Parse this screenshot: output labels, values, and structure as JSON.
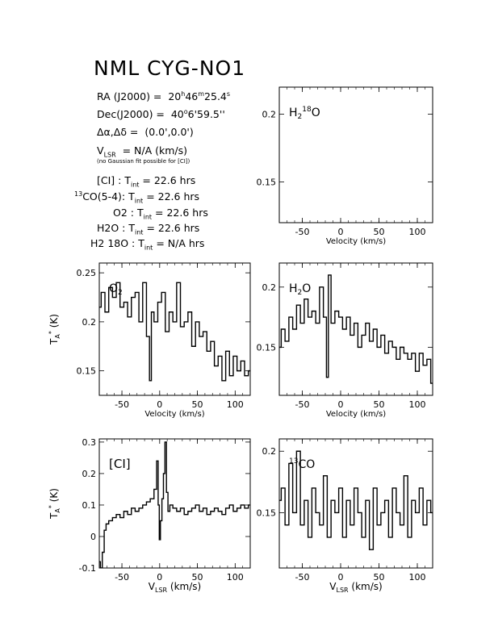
{
  "header": {
    "title": "NML CYG-NO1",
    "ra": {
      "label": "RA (J2000) =",
      "h": "20",
      "h_unit": "h",
      "m": "46",
      "m_unit": "m",
      "s": "25.4",
      "s_unit": "s"
    },
    "dec": {
      "label": "Dec(J2000) =",
      "d": "40",
      "d_unit": "o",
      "rest": "6'59.5''"
    },
    "offset": {
      "label": "Δα,Δδ =",
      "value": "(0.0',0.0')"
    },
    "vlsr": {
      "label_main": "V",
      "label_sub": "LSR",
      "value": "= N/A (km/s)"
    },
    "note": "(no Gaussian fit possible for [CI])",
    "integrations": [
      {
        "pre": "",
        "sup": "",
        "name": "[CI] :",
        "label": "T",
        "sub": "int",
        "value": "= 22.6 hrs"
      },
      {
        "pre": "",
        "sup": "13",
        "name": "CO(5-4):",
        "label": "T",
        "sub": "int",
        "value": "= 22.6 hrs"
      },
      {
        "pre": "O",
        "sup": "",
        "name": "2 :",
        "label": "T",
        "sub": "int",
        "value": "= 22.6 hrs"
      },
      {
        "pre": "H",
        "sup": "",
        "name": "2O :",
        "label": "T",
        "sub": "int",
        "value": "= 22.6 hrs"
      },
      {
        "pre": "H",
        "sup": "",
        "name": "2 18O :",
        "label": "T",
        "sub": "int",
        "value": "= N/A hrs"
      }
    ]
  },
  "chart_data": [
    {
      "type": "line",
      "name": "H2 18O panel",
      "label": "H218O",
      "xlim": [
        -80,
        120
      ],
      "ylim": [
        0.12,
        0.22
      ],
      "xticks": [
        -50,
        0,
        50,
        100
      ],
      "yticks": [
        0.15,
        0.2
      ],
      "xlabel": "Velocity (km/s)",
      "ylabel": "",
      "x": [],
      "y": []
    },
    {
      "type": "line",
      "name": "O2 panel",
      "label": "O2",
      "xlim": [
        -80,
        120
      ],
      "ylim": [
        0.125,
        0.26
      ],
      "xticks": [
        -50,
        0,
        50,
        100
      ],
      "yticks": [
        0.15,
        0.2,
        0.25
      ],
      "xlabel": "Velocity (km/s)",
      "ylabel": "TA* (K)",
      "x": [
        -80,
        -75,
        -70,
        -65,
        -60,
        -55,
        -50,
        -45,
        -40,
        -35,
        -30,
        -25,
        -20,
        -15,
        -12,
        -10,
        -5,
        0,
        5,
        10,
        15,
        20,
        25,
        30,
        35,
        40,
        45,
        50,
        55,
        60,
        65,
        70,
        75,
        80,
        85,
        90,
        95,
        100,
        105,
        110,
        115,
        120
      ],
      "y": [
        0.215,
        0.23,
        0.21,
        0.235,
        0.225,
        0.24,
        0.215,
        0.22,
        0.205,
        0.225,
        0.23,
        0.2,
        0.24,
        0.185,
        0.14,
        0.21,
        0.2,
        0.22,
        0.23,
        0.19,
        0.21,
        0.2,
        0.24,
        0.195,
        0.2,
        0.21,
        0.175,
        0.2,
        0.185,
        0.19,
        0.17,
        0.18,
        0.155,
        0.165,
        0.14,
        0.17,
        0.145,
        0.165,
        0.15,
        0.16,
        0.145,
        0.15
      ]
    },
    {
      "type": "line",
      "name": "H2O panel",
      "label": "H2O",
      "xlim": [
        -80,
        120
      ],
      "ylim": [
        0.11,
        0.22
      ],
      "xticks": [
        -50,
        0,
        50,
        100
      ],
      "yticks": [
        0.15,
        0.2
      ],
      "xlabel": "Velocity (km/s)",
      "ylabel": "",
      "x": [
        -80,
        -75,
        -70,
        -65,
        -60,
        -55,
        -50,
        -45,
        -40,
        -35,
        -30,
        -25,
        -20,
        -17,
        -15,
        -10,
        -5,
        0,
        5,
        10,
        15,
        20,
        25,
        30,
        35,
        40,
        45,
        50,
        55,
        60,
        65,
        70,
        75,
        80,
        85,
        90,
        95,
        100,
        105,
        110,
        115,
        120
      ],
      "y": [
        0.15,
        0.165,
        0.155,
        0.175,
        0.165,
        0.185,
        0.17,
        0.19,
        0.175,
        0.18,
        0.17,
        0.2,
        0.175,
        0.125,
        0.21,
        0.17,
        0.18,
        0.175,
        0.165,
        0.175,
        0.16,
        0.17,
        0.15,
        0.16,
        0.17,
        0.155,
        0.165,
        0.15,
        0.16,
        0.145,
        0.155,
        0.15,
        0.14,
        0.15,
        0.145,
        0.14,
        0.145,
        0.13,
        0.145,
        0.135,
        0.14,
        0.12
      ]
    },
    {
      "type": "line",
      "name": "CI panel",
      "label": "[CI]",
      "xlim": [
        -80,
        120
      ],
      "ylim": [
        -0.1,
        0.31
      ],
      "xticks": [
        -50,
        0,
        50,
        100
      ],
      "yticks": [
        -0.1,
        0,
        0.1,
        0.2,
        0.3
      ],
      "xlabel": "VLSR (km/s)",
      "ylabel": "TA* (K)",
      "x": [
        -80,
        -77,
        -75,
        -72,
        -70,
        -65,
        -60,
        -55,
        -50,
        -45,
        -40,
        -35,
        -30,
        -25,
        -20,
        -15,
        -10,
        -5,
        -3,
        -1,
        0,
        2,
        4,
        6,
        8,
        10,
        12,
        15,
        20,
        25,
        30,
        35,
        40,
        45,
        50,
        55,
        60,
        65,
        70,
        75,
        80,
        85,
        90,
        95,
        100,
        105,
        110,
        115,
        120
      ],
      "y": [
        -0.08,
        -0.1,
        -0.05,
        0.02,
        0.04,
        0.05,
        0.06,
        0.07,
        0.06,
        0.08,
        0.07,
        0.09,
        0.08,
        0.09,
        0.1,
        0.11,
        0.12,
        0.15,
        0.24,
        0.1,
        -0.01,
        0.05,
        0.12,
        0.2,
        0.3,
        0.14,
        0.08,
        0.1,
        0.09,
        0.08,
        0.09,
        0.07,
        0.08,
        0.09,
        0.1,
        0.08,
        0.09,
        0.07,
        0.08,
        0.09,
        0.08,
        0.07,
        0.09,
        0.1,
        0.08,
        0.09,
        0.1,
        0.09,
        0.1
      ]
    },
    {
      "type": "line",
      "name": "13CO panel",
      "label": "13CO",
      "xlim": [
        -80,
        120
      ],
      "ylim": [
        0.105,
        0.21
      ],
      "xticks": [
        -50,
        0,
        50,
        100
      ],
      "yticks": [
        0.15,
        0.2
      ],
      "xlabel": "VLSR (km/s)",
      "ylabel": "",
      "x": [
        -80,
        -75,
        -70,
        -65,
        -60,
        -55,
        -50,
        -45,
        -40,
        -35,
        -30,
        -25,
        -20,
        -15,
        -10,
        -5,
        0,
        5,
        10,
        15,
        20,
        25,
        30,
        35,
        40,
        45,
        50,
        55,
        60,
        65,
        70,
        75,
        80,
        85,
        90,
        95,
        100,
        105,
        110,
        115,
        120
      ],
      "y": [
        0.16,
        0.17,
        0.14,
        0.19,
        0.15,
        0.2,
        0.14,
        0.16,
        0.13,
        0.17,
        0.15,
        0.14,
        0.18,
        0.13,
        0.16,
        0.15,
        0.17,
        0.13,
        0.16,
        0.14,
        0.17,
        0.15,
        0.13,
        0.16,
        0.12,
        0.17,
        0.14,
        0.15,
        0.16,
        0.13,
        0.17,
        0.15,
        0.14,
        0.18,
        0.13,
        0.16,
        0.15,
        0.17,
        0.14,
        0.16,
        0.15
      ]
    }
  ]
}
